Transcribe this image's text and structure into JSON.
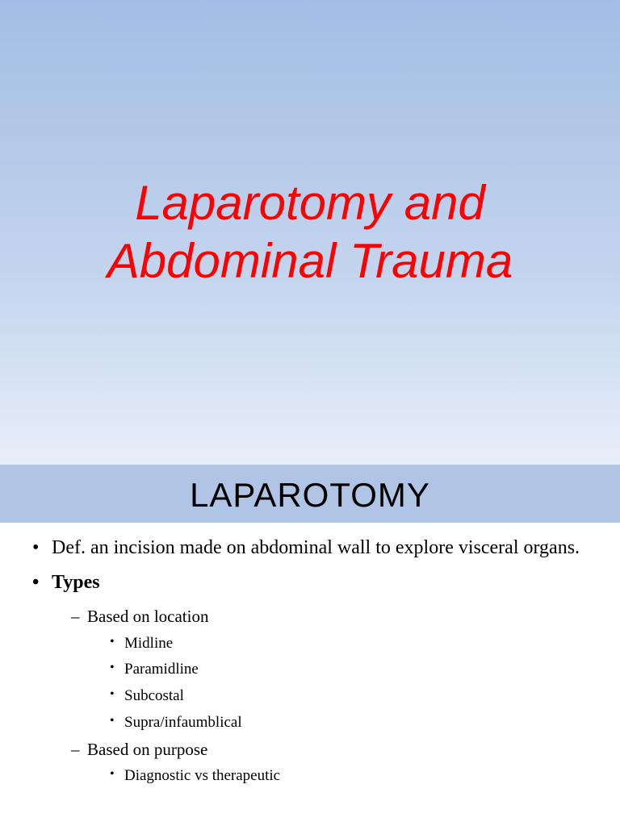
{
  "slide1": {
    "title": "Laparotomy and Abdominal Trauma",
    "background_gradient_top": "#a3bde4",
    "background_gradient_mid": "#c4d5ee",
    "background_gradient_bottom": "#e8eff9",
    "title_color": "#ff0000",
    "title_fontsize": 60,
    "title_style": "italic"
  },
  "slide2": {
    "header_bg": "#b0c4e6",
    "title": "LAPAROTOMY",
    "title_fontsize": 42,
    "title_color": "#000000",
    "bullets": {
      "def": "Def. an incision made on abdominal wall to explore visceral organs.",
      "types_label": "Types",
      "loc_label": "Based on location",
      "loc_items": [
        "Midline",
        "Paramidline",
        "Subcostal",
        "Supra/infaumblical"
      ],
      "purpose_label": "Based on purpose",
      "purpose_items": [
        "Diagnostic vs therapeutic"
      ]
    },
    "body_fontsize_l1": 24,
    "body_fontsize_l2": 21,
    "body_fontsize_l3": 19,
    "text_color": "#000000"
  }
}
